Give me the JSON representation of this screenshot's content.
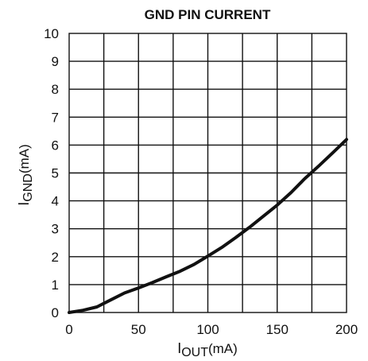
{
  "chart_data": {
    "type": "line",
    "title": "GND PIN CURRENT",
    "xlabel_main": "I",
    "xlabel_sub": "OUT",
    "xlabel_unit": "(mA)",
    "ylabel_main": "I",
    "ylabel_sub": "GND",
    "ylabel_unit": "(mA)",
    "xlim": [
      0,
      200
    ],
    "ylim": [
      0,
      10
    ],
    "xticks": [
      0,
      50,
      100,
      150,
      200
    ],
    "yticks": [
      0,
      1,
      2,
      3,
      4,
      5,
      6,
      7,
      8,
      9,
      10
    ],
    "grid": true,
    "series": [
      {
        "x": [
          0,
          10,
          20,
          30,
          40,
          50,
          60,
          70,
          80,
          90,
          100,
          110,
          120,
          130,
          140,
          150,
          160,
          170,
          180,
          190,
          200
        ],
        "y": [
          0.0,
          0.08,
          0.2,
          0.45,
          0.7,
          0.88,
          1.07,
          1.28,
          1.48,
          1.72,
          2.02,
          2.33,
          2.68,
          3.05,
          3.45,
          3.85,
          4.3,
          4.8,
          5.25,
          5.72,
          6.2
        ]
      }
    ]
  }
}
